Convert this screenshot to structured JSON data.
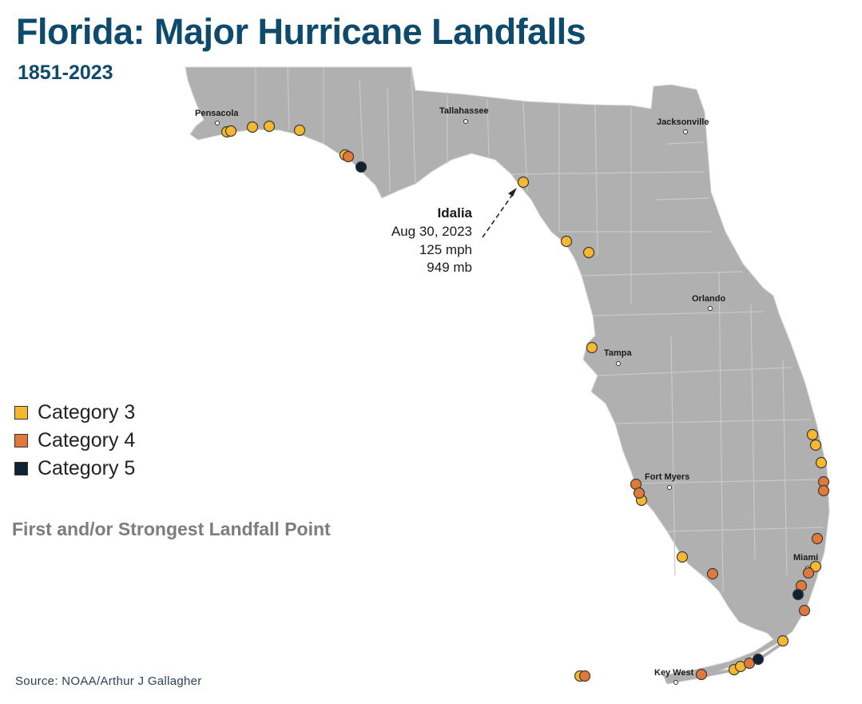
{
  "title": "Florida: Major Hurricane Landfalls",
  "subtitle": "1851-2023",
  "legend": {
    "items": [
      {
        "label": "Category 3",
        "color": "#f5b82e"
      },
      {
        "label": "Category 4",
        "color": "#e07a3a"
      },
      {
        "label": "Category 5",
        "color": "#0f2233"
      }
    ]
  },
  "note": "First and/or Strongest Landfall Point",
  "source": "Source: NOAA/Arthur J Gallagher",
  "annotation": {
    "name": "Idalia",
    "date": "Aug 30, 2023",
    "wind": "125 mph",
    "pressure": "949 mb"
  },
  "cities": {
    "pensacola": "Pensacola",
    "tallahassee": "Tallahassee",
    "jacksonville": "Jacksonville",
    "orlando": "Orlando",
    "tampa": "Tampa",
    "fort_myers": "Fort Myers",
    "miami": "Miami",
    "key_west": "Key West"
  },
  "colors": {
    "land": "#b0b0b0",
    "county_lines": "#c9c9c9",
    "title": "#0d4a6b"
  }
}
